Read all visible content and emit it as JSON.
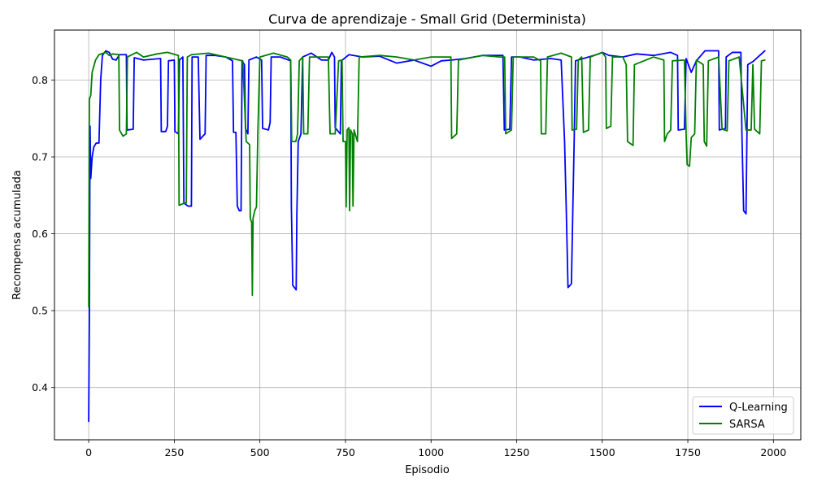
{
  "chart_data": {
    "type": "line",
    "title": "Curva de aprendizaje - Small Grid (Determinista)",
    "xlabel": "Episodio",
    "ylabel": "Recompensa acumulada",
    "xlim": [
      -100,
      2080
    ],
    "ylim": [
      0.332,
      0.865
    ],
    "xticks": [
      0,
      250,
      500,
      750,
      1000,
      1250,
      1500,
      1750,
      2000
    ],
    "yticks": [
      0.4,
      0.5,
      0.6,
      0.7,
      0.8
    ],
    "ytick_format": 1,
    "grid": true,
    "legend_position": "bottom-right",
    "series": [
      {
        "name": "Q-Learning",
        "color": "#0000ff",
        "points": [
          [
            0,
            0.356
          ],
          [
            2,
            0.5
          ],
          [
            4,
            0.74
          ],
          [
            6,
            0.672
          ],
          [
            10,
            0.7
          ],
          [
            15,
            0.713
          ],
          [
            22,
            0.718
          ],
          [
            30,
            0.718
          ],
          [
            35,
            0.8
          ],
          [
            40,
            0.832
          ],
          [
            50,
            0.838
          ],
          [
            60,
            0.836
          ],
          [
            70,
            0.827
          ],
          [
            80,
            0.826
          ],
          [
            90,
            0.833
          ],
          [
            110,
            0.833
          ],
          [
            112,
            0.735
          ],
          [
            130,
            0.736
          ],
          [
            133,
            0.829
          ],
          [
            160,
            0.826
          ],
          [
            210,
            0.828
          ],
          [
            212,
            0.733
          ],
          [
            225,
            0.733
          ],
          [
            230,
            0.74
          ],
          [
            233,
            0.825
          ],
          [
            250,
            0.826
          ],
          [
            252,
            0.733
          ],
          [
            262,
            0.73
          ],
          [
            265,
            0.826
          ],
          [
            275,
            0.83
          ],
          [
            278,
            0.64
          ],
          [
            290,
            0.636
          ],
          [
            300,
            0.636
          ],
          [
            302,
            0.83
          ],
          [
            320,
            0.83
          ],
          [
            325,
            0.723
          ],
          [
            340,
            0.73
          ],
          [
            343,
            0.832
          ],
          [
            370,
            0.832
          ],
          [
            400,
            0.83
          ],
          [
            420,
            0.825
          ],
          [
            423,
            0.732
          ],
          [
            430,
            0.732
          ],
          [
            434,
            0.636
          ],
          [
            440,
            0.63
          ],
          [
            445,
            0.63
          ],
          [
            448,
            0.825
          ],
          [
            455,
            0.82
          ],
          [
            458,
            0.737
          ],
          [
            465,
            0.73
          ],
          [
            468,
            0.826
          ],
          [
            490,
            0.83
          ],
          [
            505,
            0.826
          ],
          [
            508,
            0.737
          ],
          [
            525,
            0.735
          ],
          [
            530,
            0.745
          ],
          [
            533,
            0.83
          ],
          [
            560,
            0.83
          ],
          [
            590,
            0.825
          ],
          [
            592,
            0.636
          ],
          [
            596,
            0.533
          ],
          [
            606,
            0.527
          ],
          [
            608,
            0.625
          ],
          [
            612,
            0.72
          ],
          [
            620,
            0.73
          ],
          [
            625,
            0.83
          ],
          [
            650,
            0.835
          ],
          [
            680,
            0.826
          ],
          [
            700,
            0.826
          ],
          [
            710,
            0.836
          ],
          [
            718,
            0.83
          ],
          [
            720,
            0.738
          ],
          [
            735,
            0.73
          ],
          [
            738,
            0.825
          ],
          [
            760,
            0.833
          ],
          [
            800,
            0.83
          ],
          [
            850,
            0.831
          ],
          [
            900,
            0.822
          ],
          [
            950,
            0.826
          ],
          [
            1000,
            0.818
          ],
          [
            1030,
            0.825
          ],
          [
            1060,
            0.826
          ],
          [
            1100,
            0.828
          ],
          [
            1150,
            0.832
          ],
          [
            1210,
            0.832
          ],
          [
            1214,
            0.735
          ],
          [
            1230,
            0.736
          ],
          [
            1235,
            0.83
          ],
          [
            1260,
            0.83
          ],
          [
            1300,
            0.826
          ],
          [
            1350,
            0.828
          ],
          [
            1380,
            0.826
          ],
          [
            1390,
            0.72
          ],
          [
            1395,
            0.63
          ],
          [
            1400,
            0.53
          ],
          [
            1410,
            0.535
          ],
          [
            1414,
            0.63
          ],
          [
            1418,
            0.72
          ],
          [
            1422,
            0.825
          ],
          [
            1460,
            0.83
          ],
          [
            1490,
            0.834
          ],
          [
            1500,
            0.836
          ],
          [
            1520,
            0.832
          ],
          [
            1560,
            0.83
          ],
          [
            1600,
            0.834
          ],
          [
            1650,
            0.832
          ],
          [
            1700,
            0.836
          ],
          [
            1720,
            0.832
          ],
          [
            1722,
            0.735
          ],
          [
            1740,
            0.736
          ],
          [
            1745,
            0.828
          ],
          [
            1760,
            0.81
          ],
          [
            1775,
            0.825
          ],
          [
            1800,
            0.838
          ],
          [
            1840,
            0.838
          ],
          [
            1842,
            0.735
          ],
          [
            1860,
            0.737
          ],
          [
            1862,
            0.83
          ],
          [
            1880,
            0.836
          ],
          [
            1905,
            0.836
          ],
          [
            1908,
            0.73
          ],
          [
            1913,
            0.63
          ],
          [
            1920,
            0.626
          ],
          [
            1925,
            0.82
          ],
          [
            1940,
            0.824
          ],
          [
            1960,
            0.832
          ],
          [
            1975,
            0.838
          ]
        ]
      },
      {
        "name": "SARSA",
        "color": "#008000",
        "points": [
          [
            0,
            0.505
          ],
          [
            2,
            0.775
          ],
          [
            6,
            0.78
          ],
          [
            10,
            0.81
          ],
          [
            20,
            0.826
          ],
          [
            30,
            0.833
          ],
          [
            50,
            0.836
          ],
          [
            60,
            0.832
          ],
          [
            70,
            0.834
          ],
          [
            88,
            0.833
          ],
          [
            90,
            0.735
          ],
          [
            100,
            0.727
          ],
          [
            110,
            0.73
          ],
          [
            113,
            0.83
          ],
          [
            140,
            0.836
          ],
          [
            160,
            0.83
          ],
          [
            200,
            0.834
          ],
          [
            230,
            0.836
          ],
          [
            262,
            0.832
          ],
          [
            264,
            0.637
          ],
          [
            280,
            0.64
          ],
          [
            285,
            0.64
          ],
          [
            288,
            0.83
          ],
          [
            300,
            0.833
          ],
          [
            350,
            0.835
          ],
          [
            400,
            0.83
          ],
          [
            450,
            0.825
          ],
          [
            460,
            0.72
          ],
          [
            470,
            0.716
          ],
          [
            472,
            0.62
          ],
          [
            476,
            0.615
          ],
          [
            478,
            0.52
          ],
          [
            480,
            0.62
          ],
          [
            485,
            0.63
          ],
          [
            490,
            0.635
          ],
          [
            494,
            0.73
          ],
          [
            500,
            0.83
          ],
          [
            540,
            0.835
          ],
          [
            580,
            0.83
          ],
          [
            590,
            0.826
          ],
          [
            593,
            0.72
          ],
          [
            605,
            0.72
          ],
          [
            610,
            0.73
          ],
          [
            615,
            0.825
          ],
          [
            625,
            0.83
          ],
          [
            628,
            0.73
          ],
          [
            640,
            0.73
          ],
          [
            645,
            0.83
          ],
          [
            700,
            0.83
          ],
          [
            705,
            0.73
          ],
          [
            720,
            0.73
          ],
          [
            730,
            0.825
          ],
          [
            740,
            0.826
          ],
          [
            743,
            0.72
          ],
          [
            750,
            0.72
          ],
          [
            752,
            0.635
          ],
          [
            755,
            0.735
          ],
          [
            760,
            0.738
          ],
          [
            762,
            0.63
          ],
          [
            765,
            0.735
          ],
          [
            770,
            0.73
          ],
          [
            772,
            0.636
          ],
          [
            775,
            0.735
          ],
          [
            785,
            0.72
          ],
          [
            790,
            0.83
          ],
          [
            850,
            0.832
          ],
          [
            900,
            0.83
          ],
          [
            950,
            0.826
          ],
          [
            1000,
            0.83
          ],
          [
            1050,
            0.83
          ],
          [
            1058,
            0.83
          ],
          [
            1060,
            0.724
          ],
          [
            1075,
            0.73
          ],
          [
            1080,
            0.826
          ],
          [
            1150,
            0.832
          ],
          [
            1200,
            0.83
          ],
          [
            1215,
            0.83
          ],
          [
            1218,
            0.73
          ],
          [
            1235,
            0.735
          ],
          [
            1240,
            0.83
          ],
          [
            1300,
            0.83
          ],
          [
            1320,
            0.825
          ],
          [
            1322,
            0.73
          ],
          [
            1335,
            0.73
          ],
          [
            1340,
            0.83
          ],
          [
            1380,
            0.835
          ],
          [
            1410,
            0.83
          ],
          [
            1412,
            0.735
          ],
          [
            1425,
            0.736
          ],
          [
            1430,
            0.826
          ],
          [
            1440,
            0.83
          ],
          [
            1445,
            0.732
          ],
          [
            1460,
            0.735
          ],
          [
            1465,
            0.83
          ],
          [
            1500,
            0.836
          ],
          [
            1510,
            0.83
          ],
          [
            1512,
            0.737
          ],
          [
            1525,
            0.74
          ],
          [
            1530,
            0.83
          ],
          [
            1560,
            0.83
          ],
          [
            1570,
            0.82
          ],
          [
            1574,
            0.72
          ],
          [
            1590,
            0.715
          ],
          [
            1594,
            0.82
          ],
          [
            1650,
            0.83
          ],
          [
            1680,
            0.826
          ],
          [
            1682,
            0.72
          ],
          [
            1690,
            0.73
          ],
          [
            1700,
            0.735
          ],
          [
            1705,
            0.825
          ],
          [
            1740,
            0.826
          ],
          [
            1745,
            0.73
          ],
          [
            1748,
            0.69
          ],
          [
            1755,
            0.688
          ],
          [
            1760,
            0.725
          ],
          [
            1770,
            0.73
          ],
          [
            1775,
            0.826
          ],
          [
            1795,
            0.82
          ],
          [
            1798,
            0.72
          ],
          [
            1805,
            0.714
          ],
          [
            1810,
            0.825
          ],
          [
            1840,
            0.83
          ],
          [
            1850,
            0.736
          ],
          [
            1865,
            0.734
          ],
          [
            1870,
            0.825
          ],
          [
            1900,
            0.83
          ],
          [
            1920,
            0.735
          ],
          [
            1935,
            0.735
          ],
          [
            1940,
            0.82
          ],
          [
            1945,
            0.736
          ],
          [
            1960,
            0.73
          ],
          [
            1965,
            0.825
          ],
          [
            1975,
            0.826
          ]
        ]
      }
    ]
  }
}
